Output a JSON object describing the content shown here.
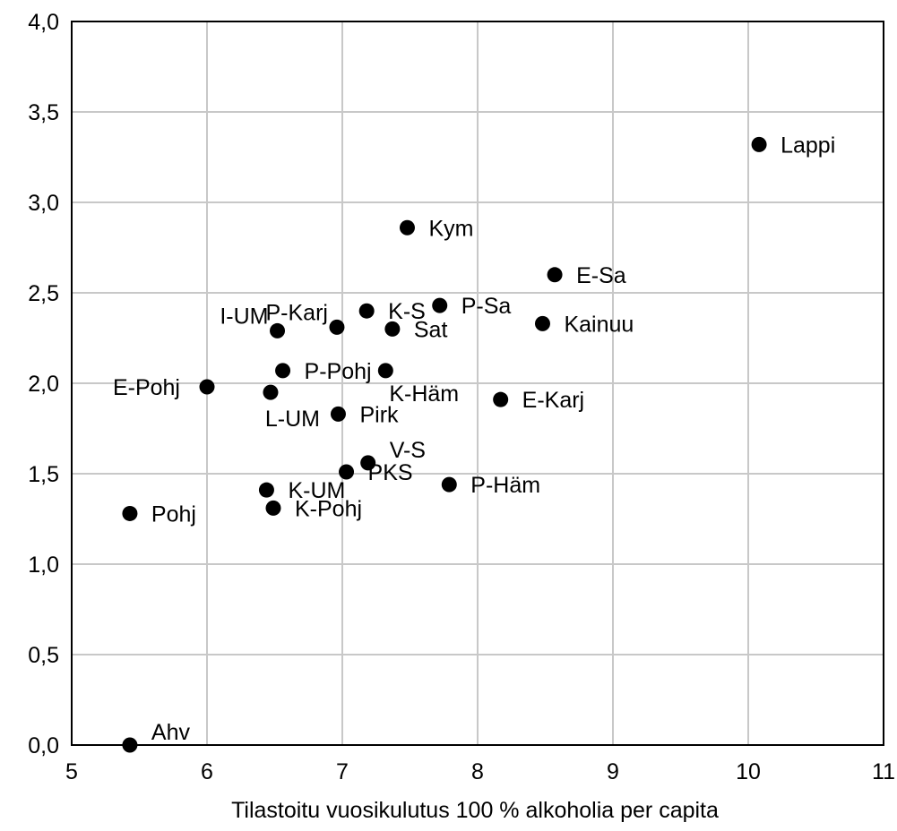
{
  "chart_data": {
    "type": "scatter",
    "title": "",
    "xlabel": "Tilastoitu vuosikulutus 100 % alkoholia per capita",
    "ylabel": "",
    "xlim": [
      5,
      11
    ],
    "ylim": [
      0,
      4
    ],
    "grid": true,
    "x_ticks": [
      {
        "value": 5,
        "label": "5"
      },
      {
        "value": 6,
        "label": "6"
      },
      {
        "value": 7,
        "label": "7"
      },
      {
        "value": 8,
        "label": "8"
      },
      {
        "value": 9,
        "label": "9"
      },
      {
        "value": 10,
        "label": "10"
      },
      {
        "value": 11,
        "label": "11"
      }
    ],
    "y_ticks": [
      {
        "value": 0.0,
        "label": "0,0"
      },
      {
        "value": 0.5,
        "label": "0,5"
      },
      {
        "value": 1.0,
        "label": "1,0"
      },
      {
        "value": 1.5,
        "label": "1,5"
      },
      {
        "value": 2.0,
        "label": "2,0"
      },
      {
        "value": 2.5,
        "label": "2,5"
      },
      {
        "value": 3.0,
        "label": "3,0"
      },
      {
        "value": 3.5,
        "label": "3,5"
      },
      {
        "value": 4.0,
        "label": "4,0"
      }
    ],
    "point_color": "#000000",
    "points": [
      {
        "label": "Lappi",
        "x": 10.08,
        "y": 3.32,
        "label_side": "right"
      },
      {
        "label": "Kym",
        "x": 7.48,
        "y": 2.86,
        "label_side": "right"
      },
      {
        "label": "E-Sa",
        "x": 8.57,
        "y": 2.6,
        "label_side": "right"
      },
      {
        "label": "P-Sa",
        "x": 7.72,
        "y": 2.43,
        "label_side": "right"
      },
      {
        "label": "K-S",
        "x": 7.18,
        "y": 2.4,
        "label_side": "right"
      },
      {
        "label": "P-Karj",
        "x": 6.96,
        "y": 2.31,
        "label_side": "above-left"
      },
      {
        "label": "I-UM",
        "x": 6.52,
        "y": 2.29,
        "label_side": "above-left"
      },
      {
        "label": "Sat",
        "x": 7.37,
        "y": 2.3,
        "label_side": "right"
      },
      {
        "label": "Kainuu",
        "x": 8.48,
        "y": 2.33,
        "label_side": "right"
      },
      {
        "label": "P-Pohj",
        "x": 6.56,
        "y": 2.07,
        "label_side": "right"
      },
      {
        "label": "K-Häm",
        "x": 7.32,
        "y": 2.07,
        "label_side": "below"
      },
      {
        "label": "E-Pohj",
        "x": 6.0,
        "y": 1.98,
        "label_side": "left"
      },
      {
        "label": "L-UM",
        "x": 6.47,
        "y": 1.95,
        "label_side": "below-left"
      },
      {
        "label": "Pirk",
        "x": 6.97,
        "y": 1.83,
        "label_side": "right"
      },
      {
        "label": "E-Karj",
        "x": 8.17,
        "y": 1.91,
        "label_side": "right"
      },
      {
        "label": "V-S",
        "x": 7.19,
        "y": 1.56,
        "label_side": "above-right"
      },
      {
        "label": "PKS",
        "x": 7.03,
        "y": 1.51,
        "label_side": "right"
      },
      {
        "label": "P-Häm",
        "x": 7.79,
        "y": 1.44,
        "label_side": "right"
      },
      {
        "label": "K-UM",
        "x": 6.44,
        "y": 1.41,
        "label_side": "right"
      },
      {
        "label": "K-Pohj",
        "x": 6.49,
        "y": 1.31,
        "label_side": "right"
      },
      {
        "label": "Pohj",
        "x": 5.43,
        "y": 1.28,
        "label_side": "right"
      },
      {
        "label": "Ahv",
        "x": 5.43,
        "y": 0.0,
        "label_side": "above-right"
      }
    ]
  }
}
